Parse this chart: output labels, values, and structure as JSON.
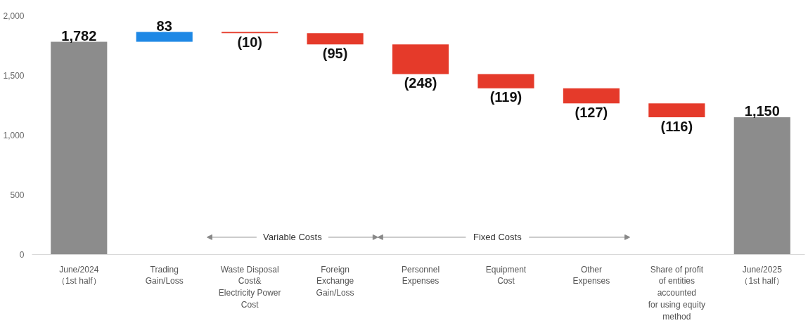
{
  "chart_data": {
    "type": "bar",
    "categories": [
      "June/2024\n（1st half）",
      "Trading\nGain/Loss",
      "Waste Disposal\nCost&\nElectricity Power\nCost",
      "Foreign\nExchange\nGain/Loss",
      "Personnel\nExpenses",
      "Equipment\nCost",
      "Other\nExpenses",
      "Share of profit\nof entities\naccounted\nfor using equity\nmethod",
      "June/2025\n（1st half）"
    ],
    "values": [
      1782,
      83,
      -10,
      -95,
      -248,
      -119,
      -127,
      -116,
      1150
    ],
    "base": [
      0,
      1782,
      1865,
      1855,
      1760,
      1512,
      1393,
      1266,
      0
    ],
    "colors": [
      "#8c8c8c",
      "#1e88e5",
      "#e53a2a",
      "#e53a2a",
      "#e53a2a",
      "#e53a2a",
      "#e53a2a",
      "#e53a2a",
      "#8c8c8c"
    ],
    "value_labels": [
      "1,782",
      "83",
      "(10)",
      "(95)",
      "(248)",
      "(119)",
      "(127)",
      "(116)",
      "1,150"
    ],
    "annotations": [
      "Variable Costs",
      "Fixed Costs"
    ],
    "ylim": [
      0,
      2000
    ],
    "yticks": [
      0,
      500,
      {
        "value": 1000,
        "label": "1,000"
      },
      {
        "value": 1500,
        "label": "1,500"
      },
      {
        "value": 2000,
        "label": "2,000"
      }
    ],
    "grid": false
  }
}
